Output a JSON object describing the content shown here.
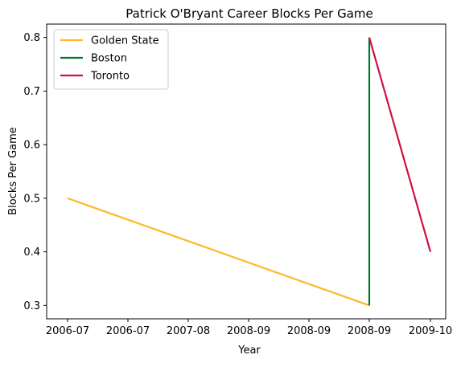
{
  "chart_data": {
    "type": "line",
    "title": "Patrick O'Bryant Career Blocks Per Game",
    "xlabel": "Year",
    "ylabel": "Blocks Per Game",
    "x_tick_labels": [
      "2006-07",
      "2006-07",
      "2007-08",
      "2008-09",
      "2008-09",
      "2008-09",
      "2009-10"
    ],
    "y_ticks": [
      0.3,
      0.4,
      0.5,
      0.6,
      0.7,
      0.8
    ],
    "ylim": [
      0.275,
      0.825
    ],
    "grid": false,
    "legend_position": "top-left",
    "series": [
      {
        "name": "Golden State",
        "color": "#FDB927",
        "points": [
          {
            "x": "2006-07",
            "y": 0.5
          },
          {
            "x": "2008-09",
            "y": 0.3
          }
        ]
      },
      {
        "name": "Boston",
        "color": "#007A33",
        "points": [
          {
            "x": "2008-09",
            "y": 0.3
          },
          {
            "x": "2008-09",
            "y": 0.8
          }
        ]
      },
      {
        "name": "Toronto",
        "color": "#CE1141",
        "points": [
          {
            "x": "2008-09",
            "y": 0.8
          },
          {
            "x": "2009-10",
            "y": 0.4
          }
        ]
      }
    ]
  }
}
